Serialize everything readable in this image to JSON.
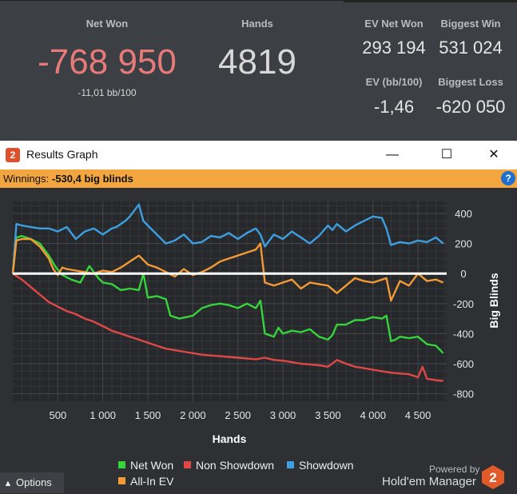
{
  "stats": {
    "net_won": {
      "label": "Net Won",
      "value": "-768 950",
      "sub": "-11,01 bb/100",
      "color": "#e87a7a"
    },
    "hands": {
      "label": "Hands",
      "value": "4819"
    },
    "ev_net_won": {
      "label": "EV Net Won",
      "value": "293 194"
    },
    "biggest_win": {
      "label": "Biggest Win",
      "value": "531 024"
    },
    "ev_bb100": {
      "label": "EV (bb/100)",
      "value": "-1,46"
    },
    "biggest_loss": {
      "label": "Biggest Loss",
      "value": "-620 050"
    }
  },
  "window": {
    "title": "Results Graph",
    "icon_text": "2",
    "minimize": "—",
    "maximize": "☐",
    "close": "✕"
  },
  "winnings": {
    "label": "Winnings:",
    "value": "-530,4 big blinds",
    "help": "?"
  },
  "chart_data": {
    "type": "line",
    "xlabel": "Hands",
    "ylabel": "Big Blinds",
    "xlim": [
      0,
      4819
    ],
    "ylim": [
      -850,
      480
    ],
    "x_ticks": [
      500,
      1000,
      1500,
      2000,
      2500,
      3000,
      3500,
      4000,
      4500
    ],
    "x_tick_labels": [
      "500",
      "1 000",
      "1 500",
      "2 000",
      "2 500",
      "3 000",
      "3 500",
      "4 000",
      "4 500"
    ],
    "y_ticks": [
      400,
      200,
      0,
      -200,
      -400,
      -600,
      -800
    ],
    "y_tick_labels": [
      "400",
      "200",
      "0",
      "-200",
      "-400",
      "-600",
      "-800"
    ],
    "grid": true,
    "legend_position": "bottom",
    "series": [
      {
        "name": "Net Won",
        "color": "#35d43a",
        "x": [
          0,
          40,
          100,
          200,
          300,
          400,
          480,
          550,
          650,
          750,
          850,
          950,
          1000,
          1100,
          1200,
          1300,
          1400,
          1450,
          1500,
          1600,
          1700,
          1750,
          1850,
          2000,
          2100,
          2200,
          2300,
          2400,
          2500,
          2600,
          2700,
          2750,
          2800,
          2900,
          2950,
          3000,
          3100,
          3200,
          3300,
          3400,
          3500,
          3550,
          3600,
          3700,
          3800,
          3900,
          4000,
          4100,
          4150,
          4200,
          4250,
          4300,
          4400,
          4500,
          4600,
          4700,
          4780
        ],
        "y": [
          0,
          240,
          250,
          230,
          200,
          120,
          40,
          -10,
          -40,
          -60,
          50,
          -30,
          -60,
          -70,
          -110,
          -100,
          -110,
          0,
          -160,
          -150,
          -170,
          -280,
          -300,
          -280,
          -230,
          -210,
          -200,
          -210,
          -230,
          -200,
          -230,
          -180,
          -400,
          -420,
          -360,
          -400,
          -380,
          -390,
          -370,
          -420,
          -440,
          -410,
          -340,
          -340,
          -310,
          -310,
          -290,
          -300,
          -280,
          -450,
          -440,
          -420,
          -430,
          -420,
          -470,
          -480,
          -530
        ]
      },
      {
        "name": "Non Showdown",
        "color": "#e04848",
        "x": [
          0,
          100,
          200,
          300,
          400,
          500,
          600,
          700,
          800,
          900,
          1000,
          1100,
          1200,
          1300,
          1400,
          1500,
          1600,
          1700,
          1800,
          1900,
          2000,
          2100,
          2200,
          2300,
          2400,
          2500,
          2600,
          2700,
          2800,
          2900,
          3000,
          3100,
          3200,
          3300,
          3400,
          3500,
          3600,
          3700,
          3800,
          3900,
          4000,
          4100,
          4200,
          4300,
          4400,
          4500,
          4550,
          4600,
          4700,
          4780
        ],
        "y": [
          0,
          -40,
          -90,
          -140,
          -190,
          -220,
          -250,
          -270,
          -300,
          -320,
          -350,
          -380,
          -400,
          -420,
          -440,
          -460,
          -480,
          -500,
          -510,
          -520,
          -530,
          -540,
          -545,
          -550,
          -555,
          -560,
          -565,
          -570,
          -560,
          -575,
          -580,
          -590,
          -600,
          -605,
          -610,
          -620,
          -575,
          -600,
          -620,
          -630,
          -640,
          -650,
          -660,
          -665,
          -670,
          -690,
          -620,
          -700,
          -710,
          -715
        ]
      },
      {
        "name": "Showdown",
        "color": "#3e9fe0",
        "x": [
          0,
          40,
          100,
          200,
          300,
          400,
          500,
          600,
          700,
          800,
          900,
          1000,
          1100,
          1150,
          1250,
          1300,
          1400,
          1450,
          1500,
          1600,
          1700,
          1800,
          1900,
          2000,
          2100,
          2200,
          2300,
          2400,
          2500,
          2600,
          2700,
          2750,
          2800,
          2900,
          3000,
          3100,
          3200,
          3300,
          3400,
          3500,
          3550,
          3600,
          3700,
          3800,
          3900,
          4000,
          4100,
          4150,
          4200,
          4300,
          4400,
          4500,
          4600,
          4700,
          4780
        ],
        "y": [
          0,
          330,
          320,
          310,
          300,
          300,
          280,
          310,
          230,
          280,
          300,
          260,
          300,
          310,
          350,
          380,
          460,
          350,
          320,
          260,
          200,
          220,
          260,
          200,
          210,
          250,
          240,
          270,
          230,
          270,
          300,
          260,
          180,
          260,
          230,
          280,
          240,
          200,
          250,
          320,
          290,
          330,
          280,
          320,
          350,
          380,
          370,
          300,
          190,
          210,
          200,
          220,
          210,
          240,
          200
        ]
      },
      {
        "name": "All-In EV",
        "color": "#f39a35",
        "x": [
          0,
          40,
          100,
          200,
          300,
          400,
          450,
          500,
          550,
          600,
          700,
          800,
          900,
          1000,
          1100,
          1200,
          1300,
          1400,
          1500,
          1600,
          1700,
          1800,
          1900,
          2000,
          2100,
          2200,
          2300,
          2400,
          2500,
          2600,
          2700,
          2750,
          2800,
          2900,
          3000,
          3100,
          3200,
          3300,
          3400,
          3500,
          3600,
          3700,
          3800,
          3900,
          4000,
          4100,
          4150,
          4200,
          4300,
          4400,
          4500,
          4600,
          4700,
          4780
        ],
        "y": [
          0,
          220,
          230,
          230,
          180,
          100,
          30,
          -10,
          40,
          30,
          20,
          10,
          0,
          20,
          10,
          40,
          80,
          120,
          60,
          40,
          10,
          -20,
          30,
          -10,
          10,
          40,
          80,
          100,
          120,
          140,
          160,
          200,
          -60,
          -80,
          -60,
          -40,
          -100,
          -60,
          -70,
          -80,
          -130,
          -80,
          -30,
          -50,
          -60,
          -40,
          -30,
          -180,
          -50,
          -80,
          0,
          -50,
          -40,
          -60
        ]
      }
    ]
  },
  "legend": {
    "net_won": "Net Won",
    "non_showdown": "Non Showdown",
    "showdown": "Showdown",
    "all_in_ev": "All-In EV"
  },
  "footer": {
    "options_label": "Options",
    "powered_by": "Powered by",
    "brand": "Hold'em Manager",
    "logo_text": "2"
  }
}
